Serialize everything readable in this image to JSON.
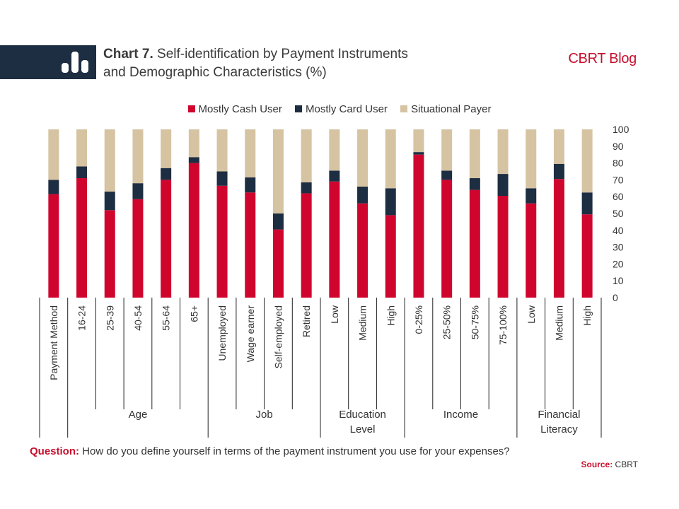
{
  "header": {
    "chart_number": "Chart 7.",
    "title_line1": "Self-identification by Payment Instruments",
    "title_line2": "and Demographic Characteristics (%)",
    "brand": "CBRT Blog",
    "icon": "bar-chart-icon"
  },
  "colors": {
    "header_bar": "#1d2d42",
    "brand": "#c8102e",
    "cash": "#d0052e",
    "card": "#1d2d42",
    "situational": "#d6c3a2"
  },
  "footer": {
    "question_label": "Question:",
    "question_text": "How do you define yourself in terms of the payment instrument you use for your expenses?",
    "source_label": "Source:",
    "source_text": "CBRT"
  },
  "chart_data": {
    "type": "bar",
    "stacked": true,
    "categories": [
      "Payment Method",
      "16-24",
      "25-39",
      "40-54",
      "55-64",
      "65+",
      "Unemployed",
      "Wage earner",
      "Self-employed",
      "Retired",
      "Low",
      "Medium",
      "High",
      "0-25%",
      "25-50%",
      "50-75%",
      "75-100%",
      "Low",
      "Medium",
      "High"
    ],
    "groups": [
      {
        "label": "",
        "start": 0,
        "end": 0
      },
      {
        "label": "Age",
        "start": 1,
        "end": 5
      },
      {
        "label": "Job",
        "start": 6,
        "end": 9
      },
      {
        "label": "Education Level",
        "start": 10,
        "end": 12
      },
      {
        "label": "Income",
        "start": 13,
        "end": 16
      },
      {
        "label": "Financial Literacy",
        "start": 17,
        "end": 19
      }
    ],
    "series": [
      {
        "name": "Mostly Cash User",
        "values": [
          61.5,
          71,
          52,
          58.5,
          70,
          80,
          66.5,
          62.5,
          40.5,
          62,
          69,
          56,
          49,
          85,
          70,
          64,
          60.5,
          56,
          70.5,
          49.5
        ]
      },
      {
        "name": "Mostly Card User",
        "values": [
          8.5,
          7,
          11,
          9.5,
          7,
          3.5,
          8.5,
          9,
          9.5,
          6.5,
          6.5,
          10,
          16,
          1.5,
          5.5,
          7,
          13,
          9,
          9,
          13
        ]
      },
      {
        "name": "Situational Payer",
        "values": [
          30,
          22,
          37,
          32,
          23,
          16.5,
          25,
          28.5,
          50,
          31.5,
          24.5,
          34,
          35,
          13.5,
          24.5,
          29,
          26.5,
          35,
          20.5,
          37.5
        ]
      }
    ],
    "y_ticks": [
      0,
      10,
      20,
      30,
      40,
      50,
      60,
      70,
      80,
      90,
      100
    ],
    "ylim": [
      0,
      100
    ],
    "y_axis_position": "right",
    "grid": false,
    "legend_position": "top"
  }
}
